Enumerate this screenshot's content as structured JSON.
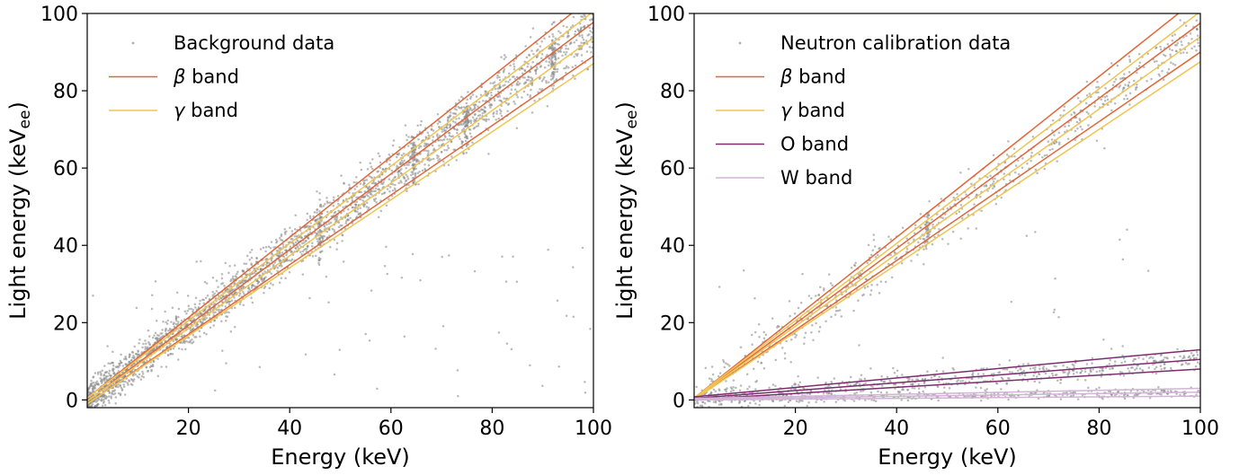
{
  "chart_data": [
    {
      "type": "scatter",
      "xlabel": "Energy (keV)",
      "ylabel": "Light energy (keV",
      "ylabel_sub": "ee",
      "ylabel_close": ")",
      "xlim": [
        0,
        100
      ],
      "ylim": [
        -2,
        100
      ],
      "xticks": [
        20,
        40,
        60,
        80,
        100
      ],
      "yticks": [
        0,
        20,
        40,
        60,
        80,
        100
      ],
      "grid": false,
      "legend_placement": "upper-left",
      "series": [
        {
          "name": "Background data",
          "kind": "points",
          "color": "#8c8c8c"
        },
        {
          "name": "β band",
          "greek": "β",
          "rest": " band",
          "kind": "band",
          "color": "#e0673a",
          "lines": [
            {
              "x": [
                0,
                100
              ],
              "y": [
                0.5,
                104.5
              ]
            },
            {
              "x": [
                0,
                100
              ],
              "y": [
                -0.3,
                97.7
              ]
            },
            {
              "x": [
                0,
                100
              ],
              "y": [
                -1.0,
                89.0
              ]
            }
          ]
        },
        {
          "name": "γ band",
          "greek": "γ",
          "rest": " band",
          "kind": "band",
          "color": "#eec553",
          "lines": [
            {
              "x": [
                0,
                100
              ],
              "y": [
                0.5,
                100.5
              ]
            },
            {
              "x": [
                0,
                100
              ],
              "y": [
                -0.3,
                93.7
              ]
            },
            {
              "x": [
                0,
                100
              ],
              "y": [
                -1.0,
                87.0
              ]
            }
          ]
        }
      ]
    },
    {
      "type": "scatter",
      "xlabel": "Energy (keV)",
      "ylabel": "Light energy (keV",
      "ylabel_sub": "ee",
      "ylabel_close": ")",
      "xlim": [
        0,
        100
      ],
      "ylim": [
        -2,
        100
      ],
      "xticks": [
        20,
        40,
        60,
        80,
        100
      ],
      "yticks": [
        0,
        20,
        40,
        60,
        80,
        100
      ],
      "grid": false,
      "legend_placement": "upper-left",
      "series": [
        {
          "name": "Neutron calibration data",
          "kind": "points",
          "color": "#8c8c8c"
        },
        {
          "name": "β band",
          "greek": "β",
          "rest": " band",
          "kind": "band",
          "color": "#e0673a",
          "lines": [
            {
              "x": [
                0,
                100
              ],
              "y": [
                0.5,
                104.5
              ]
            },
            {
              "x": [
                0,
                100
              ],
              "y": [
                0.3,
                97.5
              ]
            },
            {
              "x": [
                0,
                100
              ],
              "y": [
                0.1,
                90.0
              ]
            }
          ]
        },
        {
          "name": "γ band",
          "greek": "γ",
          "rest": " band",
          "kind": "band",
          "color": "#eec553",
          "lines": [
            {
              "x": [
                0,
                100
              ],
              "y": [
                0.5,
                100.5
              ]
            },
            {
              "x": [
                0,
                100
              ],
              "y": [
                0.3,
                94.0
              ]
            },
            {
              "x": [
                0,
                100
              ],
              "y": [
                0.1,
                87.5
              ]
            }
          ]
        },
        {
          "name": "O band",
          "kind": "band",
          "color": "#7b2d6e",
          "lines": [
            {
              "x": [
                0,
                100
              ],
              "y": [
                0.8,
                13.0
              ]
            },
            {
              "x": [
                0,
                100
              ],
              "y": [
                0.4,
                10.5
              ]
            },
            {
              "x": [
                0,
                100
              ],
              "y": [
                0.1,
                8.0
              ]
            }
          ]
        },
        {
          "name": "W band",
          "kind": "band",
          "color": "#d2b4d6",
          "lines": [
            {
              "x": [
                0,
                100
              ],
              "y": [
                0.4,
                3.0
              ]
            },
            {
              "x": [
                0,
                100
              ],
              "y": [
                0.2,
                2.0
              ]
            },
            {
              "x": [
                0,
                100
              ],
              "y": [
                0.0,
                1.0
              ]
            }
          ]
        }
      ]
    }
  ]
}
